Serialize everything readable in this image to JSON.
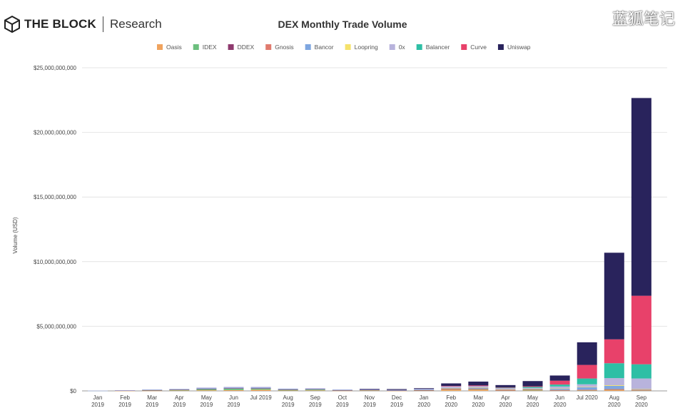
{
  "header": {
    "brand": "THE BLOCK",
    "sub": "Research"
  },
  "watermark": "蓝狐笔记",
  "chart_data": {
    "type": "bar",
    "stacked": true,
    "title": "DEX Monthly Trade Volume",
    "xlabel": "",
    "ylabel": "Volume (USD)",
    "ylim": [
      0,
      25000000000
    ],
    "yticks": [
      0,
      5000000000,
      10000000000,
      15000000000,
      20000000000,
      25000000000
    ],
    "ytick_labels": [
      "$0",
      "$5,000,000,000",
      "$10,000,000,000",
      "$15,000,000,000",
      "$20,000,000,000",
      "$25,000,000,000"
    ],
    "legend_position": "top-center",
    "grid": true,
    "categories": [
      [
        "Jan",
        "2019"
      ],
      [
        "Feb",
        "2019"
      ],
      [
        "Mar",
        "2019"
      ],
      [
        "Apr",
        "2019"
      ],
      [
        "May",
        "2019"
      ],
      [
        "Jun",
        "2019"
      ],
      [
        "Jul 2019",
        ""
      ],
      [
        "Aug",
        "2019"
      ],
      [
        "Sep",
        "2019"
      ],
      [
        "Oct",
        "2019"
      ],
      [
        "Nov",
        "2019"
      ],
      [
        "Dec",
        "2019"
      ],
      [
        "Jan",
        "2020"
      ],
      [
        "Feb",
        "2020"
      ],
      [
        "Mar",
        "2020"
      ],
      [
        "Apr",
        "2020"
      ],
      [
        "May",
        "2020"
      ],
      [
        "Jun",
        "2020"
      ],
      [
        "Jul 2020",
        ""
      ],
      [
        "Aug",
        "2020"
      ],
      [
        "Sep",
        "2020"
      ]
    ],
    "units": "billion USD",
    "series": [
      {
        "name": "Oasis",
        "color": "#f0a35e",
        "values": [
          0.005,
          0.01,
          0.02,
          0.03,
          0.05,
          0.06,
          0.09,
          0.03,
          0.04,
          0.02,
          0.03,
          0.01,
          0.03,
          0.1,
          0.1,
          0.04,
          0.03,
          0.03,
          0.05,
          0.1,
          0.05
        ]
      },
      {
        "name": "IDEX",
        "color": "#6cbf7e",
        "values": [
          0.005,
          0.02,
          0.04,
          0.06,
          0.1,
          0.13,
          0.1,
          0.07,
          0.08,
          0.03,
          0.04,
          0.02,
          0.03,
          0.04,
          0.05,
          0.02,
          0.06,
          0.02,
          0.02,
          0.02,
          0.02
        ]
      },
      {
        "name": "DDEX",
        "color": "#8e3a6e",
        "values": [
          0,
          0.005,
          0.01,
          0.01,
          0.01,
          0.01,
          0.01,
          0.01,
          0.01,
          0.01,
          0.01,
          0.01,
          0.01,
          0.01,
          0.01,
          0.01,
          0.01,
          0.01,
          0.01,
          0.01,
          0.01
        ]
      },
      {
        "name": "Gnosis",
        "color": "#e07b6e",
        "values": [
          0,
          0,
          0,
          0,
          0,
          0,
          0,
          0,
          0,
          0,
          0,
          0,
          0,
          0.02,
          0.02,
          0.01,
          0.01,
          0.01,
          0.01,
          0.01,
          0.01
        ]
      },
      {
        "name": "Bancor",
        "color": "#7ea6e0",
        "values": [
          0.005,
          0.01,
          0.02,
          0.03,
          0.05,
          0.05,
          0.05,
          0.03,
          0.03,
          0.02,
          0.03,
          0.02,
          0.04,
          0.05,
          0.08,
          0.04,
          0.05,
          0.1,
          0.2,
          0.25,
          0.05
        ]
      },
      {
        "name": "Loopring",
        "color": "#f5e26b",
        "values": [
          0,
          0,
          0,
          0,
          0,
          0,
          0,
          0,
          0,
          0,
          0,
          0,
          0,
          0.01,
          0.01,
          0.01,
          0.01,
          0.02,
          0.02,
          0.05,
          0.02
        ]
      },
      {
        "name": "0x",
        "color": "#b8b3dc",
        "values": [
          0.005,
          0.01,
          0.02,
          0.03,
          0.05,
          0.06,
          0.06,
          0.04,
          0.05,
          0.03,
          0.04,
          0.02,
          0.05,
          0.12,
          0.1,
          0.1,
          0.06,
          0.15,
          0.2,
          0.55,
          0.8
        ]
      },
      {
        "name": "Balancer",
        "color": "#2ebfa5",
        "values": [
          0,
          0,
          0,
          0,
          0,
          0,
          0,
          0,
          0,
          0,
          0,
          0,
          0,
          0,
          0,
          0.02,
          0.08,
          0.15,
          0.45,
          1.15,
          1.1
        ]
      },
      {
        "name": "Curve",
        "color": "#e8416a",
        "values": [
          0,
          0,
          0,
          0,
          0,
          0,
          0,
          0,
          0,
          0,
          0,
          0,
          0,
          0.03,
          0.05,
          0.03,
          0.05,
          0.3,
          1.05,
          1.85,
          5.3
        ]
      },
      {
        "name": "Uniswap",
        "color": "#29235c",
        "values": [
          0,
          0,
          0,
          0,
          0,
          0,
          0,
          0,
          0,
          0,
          0.01,
          0.06,
          0.05,
          0.2,
          0.3,
          0.17,
          0.4,
          0.4,
          1.75,
          6.7,
          15.3
        ]
      }
    ]
  }
}
